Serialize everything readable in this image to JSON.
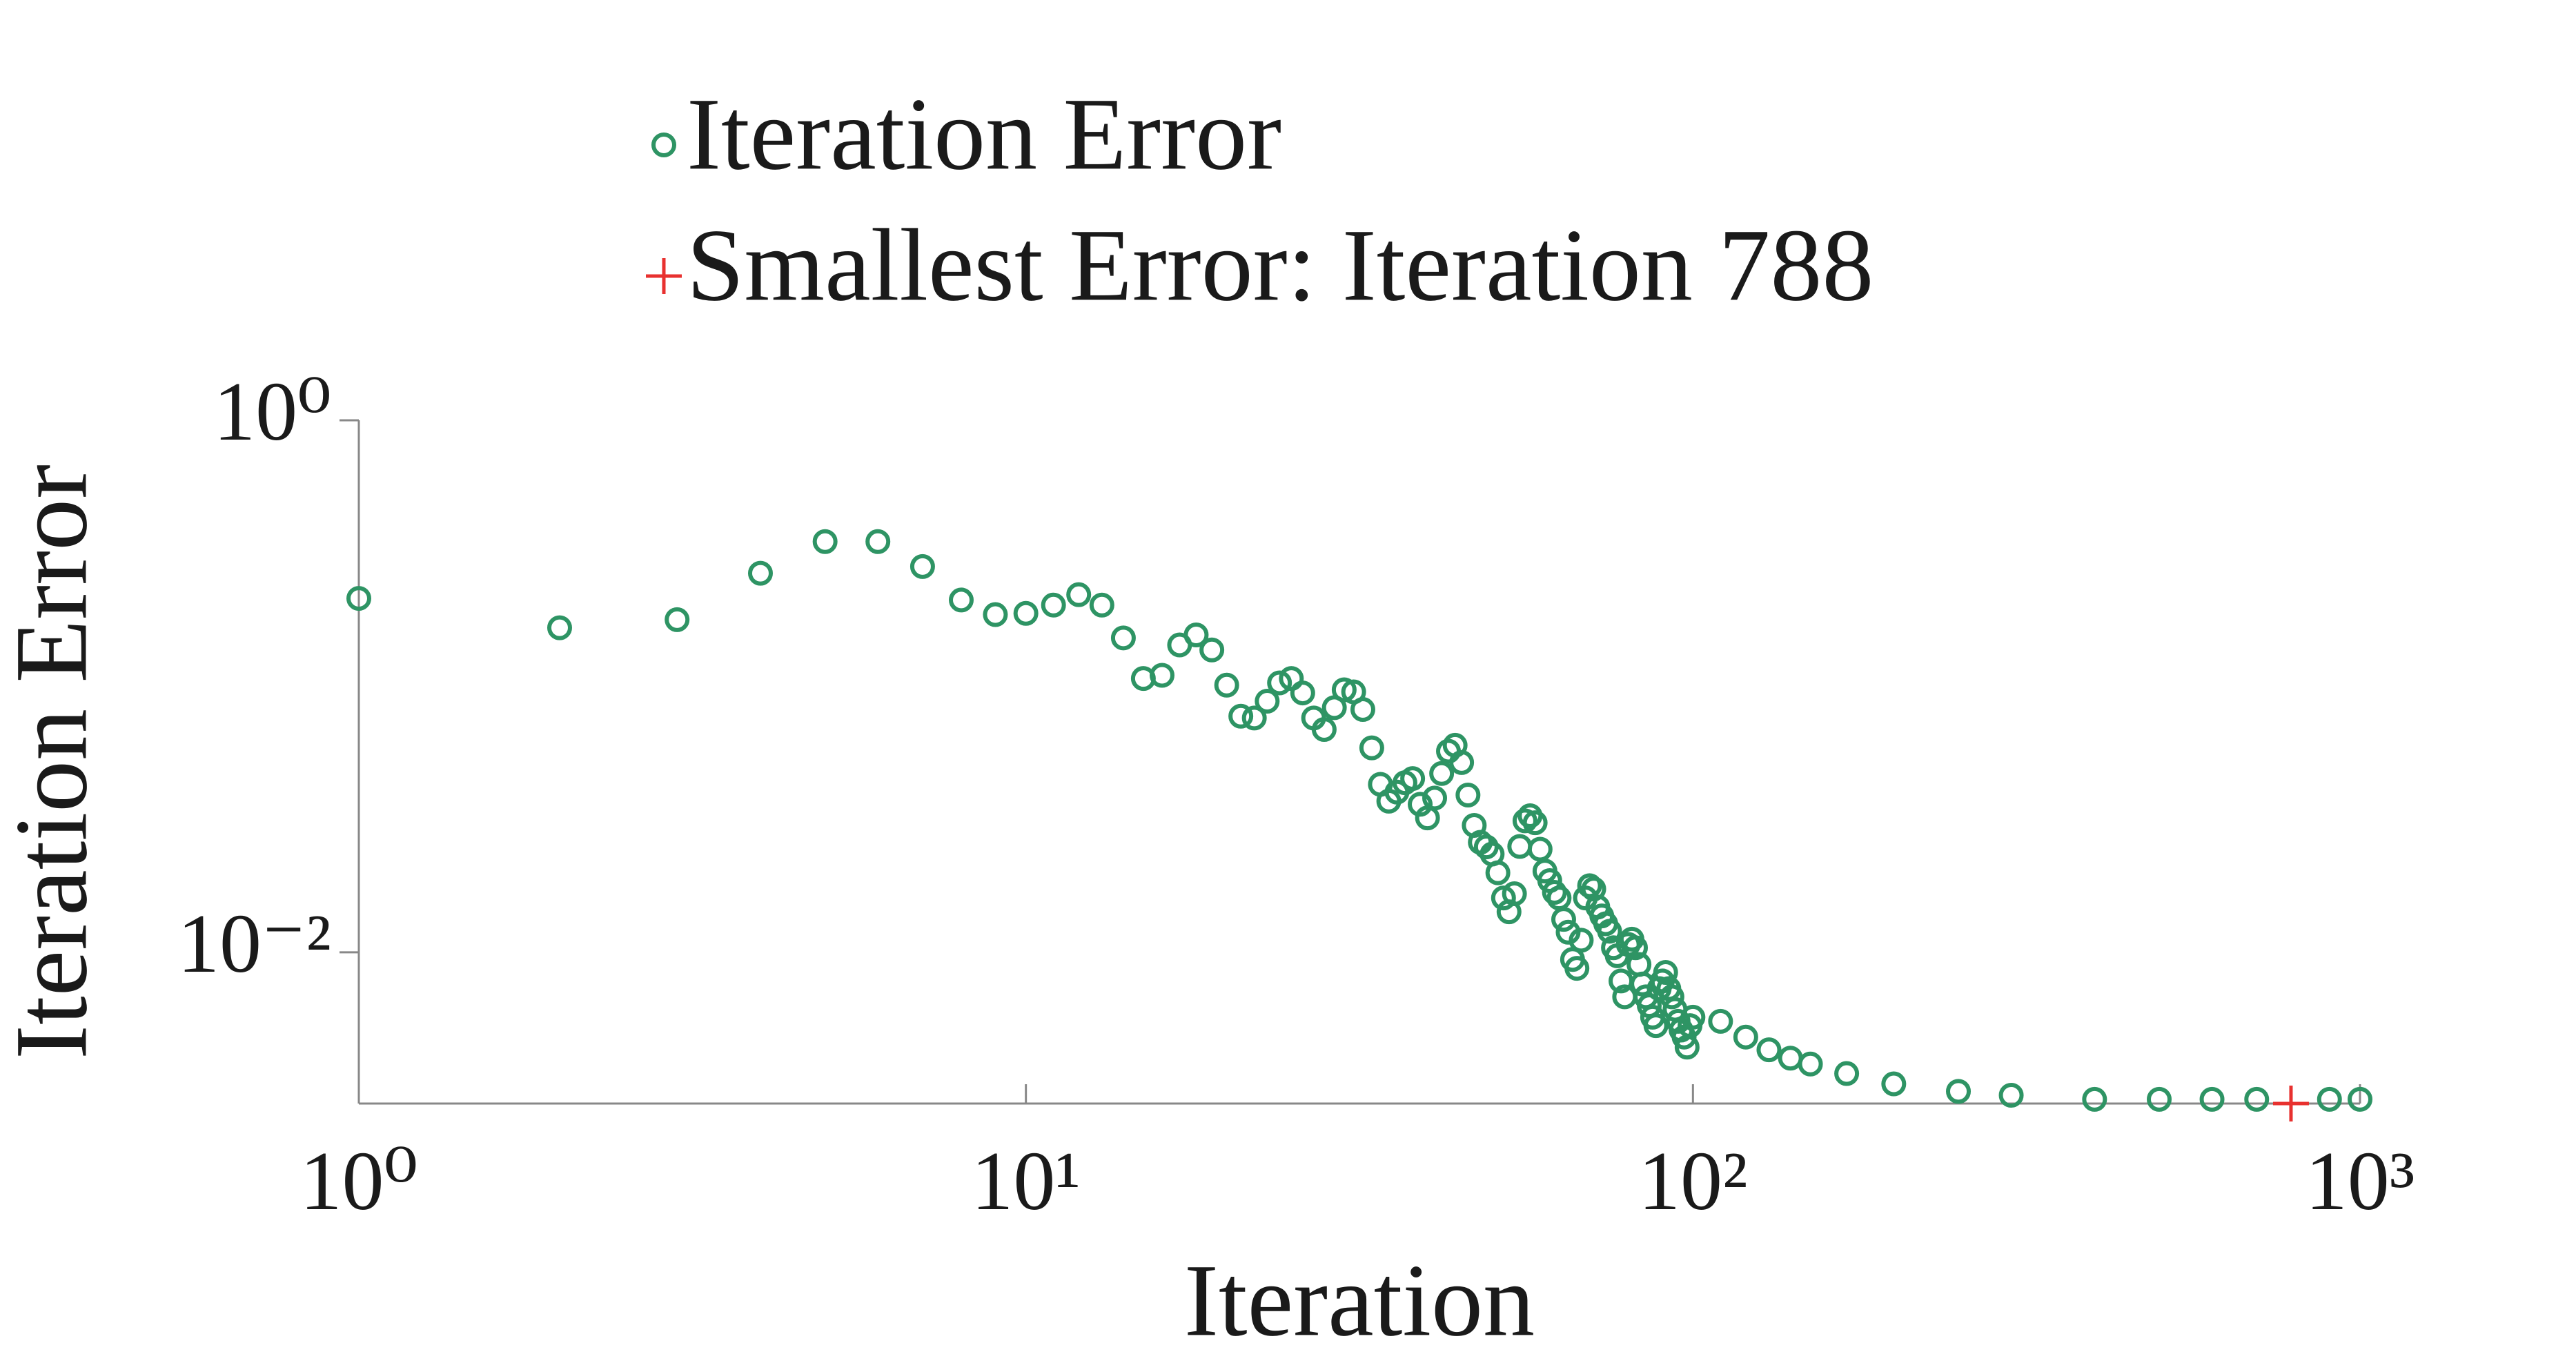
{
  "chart_data": {
    "type": "scatter",
    "xlabel": "Iteration",
    "ylabel": "Iteration Error",
    "xscale": "log",
    "yscale": "log",
    "xlim": [
      1,
      1000
    ],
    "ylim": [
      0.0027,
      1
    ],
    "xticks": [
      {
        "value": 1,
        "label": "10⁰"
      },
      {
        "value": 10,
        "label": "10¹"
      },
      {
        "value": 100,
        "label": "10²"
      },
      {
        "value": 1000,
        "label": "10³"
      }
    ],
    "yticks": [
      {
        "value": 0.01,
        "label": "10⁻²"
      },
      {
        "value": 1,
        "label": "10⁰"
      }
    ],
    "legend": "top",
    "series": [
      {
        "name": "Iteration Error",
        "color": "#2e9464",
        "marker": "circle",
        "x": [
          1,
          2,
          3,
          4,
          5,
          6,
          7,
          8,
          9,
          10,
          11,
          12,
          13,
          14,
          15,
          16,
          17,
          18,
          19,
          20,
          21,
          22,
          23,
          24,
          25,
          26,
          27,
          28,
          29,
          30,
          31,
          32,
          33,
          34,
          35,
          36,
          37,
          38,
          39,
          40,
          41,
          42,
          43,
          44,
          45,
          46,
          47,
          48,
          49,
          50,
          51,
          52,
          53,
          54,
          55,
          56,
          57,
          58,
          59,
          60,
          61,
          62,
          63,
          64,
          65,
          66,
          67,
          68,
          69,
          70,
          71,
          72,
          73,
          74,
          75,
          76,
          77,
          78,
          79,
          80,
          81,
          82,
          83,
          84,
          85,
          86,
          87,
          88,
          89,
          90,
          91,
          92,
          93,
          94,
          95,
          96,
          97,
          98,
          99,
          100,
          110,
          120,
          130,
          140,
          150,
          170,
          200,
          250,
          300,
          400,
          500,
          600,
          700,
          900,
          1000
        ],
        "values": [
          0.214,
          0.166,
          0.178,
          0.266,
          0.35,
          0.35,
          0.282,
          0.211,
          0.186,
          0.188,
          0.202,
          0.221,
          0.202,
          0.152,
          0.107,
          0.11,
          0.143,
          0.156,
          0.137,
          0.101,
          0.0772,
          0.076,
          0.0879,
          0.103,
          0.107,
          0.0944,
          0.076,
          0.0688,
          0.0831,
          0.097,
          0.0953,
          0.0818,
          0.0587,
          0.0428,
          0.037,
          0.04,
          0.0434,
          0.045,
          0.036,
          0.032,
          0.038,
          0.047,
          0.057,
          0.06,
          0.0517,
          0.039,
          0.03,
          0.0259,
          0.0249,
          0.0234,
          0.0199,
          0.016,
          0.0142,
          0.0166,
          0.025,
          0.0312,
          0.0326,
          0.0307,
          0.0244,
          0.0202,
          0.0186,
          0.0168,
          0.016,
          0.0133,
          0.0119,
          0.0094,
          0.0087,
          0.0111,
          0.016,
          0.0178,
          0.0173,
          0.0148,
          0.0137,
          0.0128,
          0.012,
          0.0104,
          0.0097,
          0.0078,
          0.0068,
          0.0107,
          0.0112,
          0.0104,
          0.009,
          0.0076,
          0.0068,
          0.0063,
          0.0057,
          0.0053,
          0.0073,
          0.0078,
          0.0084,
          0.0073,
          0.0068,
          0.0061,
          0.0055,
          0.0051,
          0.0048,
          0.0044,
          0.0053,
          0.0057,
          0.0055,
          0.0048,
          0.0043,
          0.004,
          0.0038,
          0.0035,
          0.0032,
          0.003,
          0.0029,
          0.0028,
          0.0028,
          0.0028,
          0.0028,
          0.0028,
          0.0028
        ]
      },
      {
        "name": "Smallest Error: Iteration 788",
        "color": "#e8312f",
        "marker": "plus",
        "x": [
          788
        ],
        "values": [
          0.0027
        ]
      }
    ]
  }
}
